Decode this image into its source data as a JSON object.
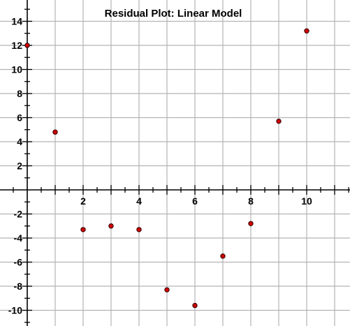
{
  "chart_data": {
    "type": "scatter",
    "title": "Residual Plot: Linear Model",
    "xlabel": "",
    "ylabel": "",
    "xlim": [
      0,
      11.5
    ],
    "ylim": [
      -11,
      14.5
    ],
    "grid": true,
    "x_ticks": [
      2,
      4,
      6,
      8,
      10
    ],
    "y_ticks": [
      14,
      12,
      10,
      8,
      6,
      4,
      2,
      -2,
      -4,
      -6,
      -8,
      -10
    ],
    "point_color": "#cc0000",
    "points": [
      {
        "x": 0,
        "y": 12
      },
      {
        "x": 1,
        "y": 4.8
      },
      {
        "x": 2,
        "y": -3.3
      },
      {
        "x": 3,
        "y": -3.0
      },
      {
        "x": 4,
        "y": -3.3
      },
      {
        "x": 5,
        "y": -8.3
      },
      {
        "x": 6,
        "y": -9.6
      },
      {
        "x": 7,
        "y": -5.5
      },
      {
        "x": 8,
        "y": -2.8
      },
      {
        "x": 9,
        "y": 5.7
      },
      {
        "x": 10,
        "y": 13.2
      }
    ]
  }
}
